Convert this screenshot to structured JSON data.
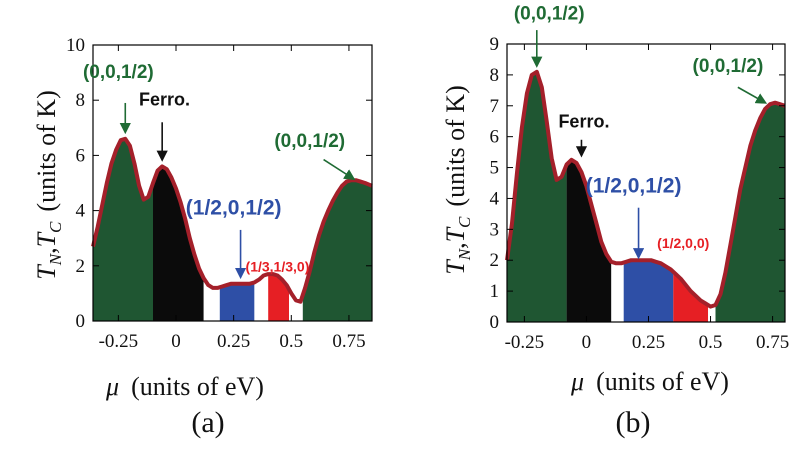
{
  "chart_data": [
    {
      "type": "area",
      "panel_label": "(a)",
      "xlabel_symbol": "μ",
      "xlabel_text": "(units of eV)",
      "ylabel_symbol_main": "T",
      "ylabel_sub1": "N",
      "ylabel_sep": ",",
      "ylabel_sub2": "C",
      "ylabel_text": "(units of K)",
      "xlim": [
        -0.36,
        0.85
      ],
      "ylim": [
        0,
        10
      ],
      "xticks": [
        -0.25,
        0,
        0.25,
        0.5,
        0.75
      ],
      "xtick_labels": [
        "-0.25",
        "0",
        "0.25",
        "0.5",
        "0.75"
      ],
      "yticks": [
        0,
        2,
        4,
        6,
        8,
        10
      ],
      "ytick_labels": [
        "0",
        "2",
        "4",
        "6",
        "8",
        "10"
      ],
      "curve": {
        "x": [
          -0.36,
          -0.34,
          -0.32,
          -0.3,
          -0.28,
          -0.26,
          -0.24,
          -0.22,
          -0.2,
          -0.18,
          -0.16,
          -0.14,
          -0.12,
          -0.1,
          -0.08,
          -0.06,
          -0.04,
          -0.02,
          0.0,
          0.02,
          0.04,
          0.06,
          0.08,
          0.1,
          0.12,
          0.14,
          0.16,
          0.18,
          0.2,
          0.22,
          0.24,
          0.26,
          0.28,
          0.3,
          0.32,
          0.34,
          0.36,
          0.38,
          0.4,
          0.42,
          0.44,
          0.46,
          0.48,
          0.5,
          0.52,
          0.54,
          0.56,
          0.58,
          0.6,
          0.62,
          0.64,
          0.66,
          0.68,
          0.7,
          0.72,
          0.74,
          0.76,
          0.78,
          0.8,
          0.82,
          0.85
        ],
        "y": [
          2.7,
          3.4,
          4.2,
          5.0,
          5.7,
          6.2,
          6.55,
          6.6,
          6.35,
          5.7,
          4.9,
          4.4,
          4.5,
          5.0,
          5.45,
          5.6,
          5.5,
          5.2,
          4.8,
          4.3,
          3.7,
          3.0,
          2.4,
          1.9,
          1.55,
          1.3,
          1.2,
          1.2,
          1.25,
          1.3,
          1.35,
          1.35,
          1.35,
          1.35,
          1.35,
          1.4,
          1.5,
          1.65,
          1.7,
          1.7,
          1.65,
          1.5,
          1.3,
          1.0,
          0.75,
          0.7,
          1.2,
          1.8,
          2.5,
          3.1,
          3.6,
          4.0,
          4.35,
          4.65,
          4.9,
          5.05,
          5.1,
          5.1,
          5.05,
          5.0,
          4.9
        ]
      },
      "regions": [
        {
          "phase": "(0,0,1/2)",
          "x_from": -0.36,
          "x_to": -0.1,
          "color": "#1f5632"
        },
        {
          "phase": "Ferro.",
          "x_from": -0.1,
          "x_to": 0.12,
          "color": "#0b0b0b"
        },
        {
          "phase": "gap",
          "x_from": 0.12,
          "x_to": 0.19,
          "color": "#ffffff"
        },
        {
          "phase": "(1/2,0,1/2)",
          "x_from": 0.19,
          "x_to": 0.34,
          "color": "#2e4fa6"
        },
        {
          "phase": "gap",
          "x_from": 0.34,
          "x_to": 0.4,
          "color": "#ffffff"
        },
        {
          "phase": "(1/3,1/3,0)",
          "x_from": 0.4,
          "x_to": 0.49,
          "color": "#e61f24"
        },
        {
          "phase": "gap",
          "x_from": 0.49,
          "x_to": 0.55,
          "color": "#ffffff"
        },
        {
          "phase": "(0,0,1/2)",
          "x_from": 0.55,
          "x_to": 0.85,
          "color": "#1f5632"
        }
      ],
      "annotations": [
        {
          "text": "(0,0,1/2)",
          "color": "#1f6b34",
          "size": 19,
          "tx": -0.25,
          "ty": 8.8,
          "ax": -0.22,
          "ay": 7.9,
          "hx": -0.22,
          "hy": 6.85
        },
        {
          "text": "Ferro.",
          "color": "#111111",
          "size": 18,
          "tx": -0.05,
          "ty": 7.8,
          "ax": -0.06,
          "ay": 7.2,
          "hx": -0.06,
          "hy": 5.85
        },
        {
          "text": "(1/2,0,1/2)",
          "color": "#2e4fa6",
          "size": 21,
          "tx": 0.25,
          "ty": 3.85,
          "ax": 0.28,
          "ay": 3.3,
          "hx": 0.28,
          "hy": 1.6
        },
        {
          "text": "(1/3,1/3,0)",
          "color": "#e61f24",
          "size": 14,
          "tx": 0.44,
          "ty": 1.8,
          "ax": null,
          "ay": null,
          "hx": null,
          "hy": null
        },
        {
          "text": "(0,0,1/2)",
          "color": "#1f6b34",
          "size": 19,
          "tx": 0.58,
          "ty": 6.3,
          "ax": 0.64,
          "ay": 5.85,
          "hx": 0.77,
          "hy": 5.15
        }
      ]
    },
    {
      "type": "area",
      "panel_label": "(b)",
      "xlabel_symbol": "μ",
      "xlabel_text": "(units of eV)",
      "ylabel_symbol_main": "T",
      "ylabel_sub1": "N",
      "ylabel_sep": ",",
      "ylabel_sub2": "C",
      "ylabel_text": "(units of K)",
      "xlim": [
        -0.32,
        0.8
      ],
      "ylim": [
        0,
        9
      ],
      "xticks": [
        -0.25,
        0,
        0.25,
        0.5,
        0.75
      ],
      "xtick_labels": [
        "-0.25",
        "0",
        "0.25",
        "0.5",
        "0.75"
      ],
      "yticks": [
        0,
        1,
        2,
        3,
        4,
        5,
        6,
        7,
        8,
        9
      ],
      "ytick_labels": [
        "0",
        "1",
        "2",
        "3",
        "4",
        "5",
        "6",
        "7",
        "8",
        "9"
      ],
      "curve": {
        "x": [
          -0.32,
          -0.3,
          -0.28,
          -0.26,
          -0.24,
          -0.22,
          -0.2,
          -0.18,
          -0.16,
          -0.14,
          -0.12,
          -0.1,
          -0.08,
          -0.06,
          -0.04,
          -0.02,
          0.0,
          0.02,
          0.04,
          0.06,
          0.08,
          0.1,
          0.12,
          0.14,
          0.16,
          0.18,
          0.2,
          0.22,
          0.24,
          0.26,
          0.28,
          0.3,
          0.32,
          0.34,
          0.36,
          0.38,
          0.4,
          0.42,
          0.44,
          0.46,
          0.48,
          0.5,
          0.52,
          0.54,
          0.56,
          0.58,
          0.6,
          0.62,
          0.64,
          0.66,
          0.68,
          0.7,
          0.72,
          0.74,
          0.76,
          0.78,
          0.8
        ],
        "y": [
          2.0,
          3.2,
          4.8,
          6.3,
          7.4,
          8.0,
          8.1,
          7.6,
          6.5,
          5.3,
          4.6,
          4.7,
          5.1,
          5.25,
          5.15,
          4.85,
          4.4,
          3.8,
          3.2,
          2.6,
          2.2,
          1.95,
          1.9,
          1.9,
          1.95,
          2.0,
          2.0,
          2.0,
          2.0,
          2.0,
          1.95,
          1.9,
          1.8,
          1.7,
          1.55,
          1.4,
          1.2,
          1.0,
          0.85,
          0.7,
          0.6,
          0.5,
          0.55,
          0.9,
          1.6,
          2.5,
          3.4,
          4.3,
          5.0,
          5.7,
          6.2,
          6.6,
          6.9,
          7.05,
          7.1,
          7.05,
          7.0
        ]
      },
      "regions": [
        {
          "phase": "(0,0,1/2)",
          "x_from": -0.32,
          "x_to": -0.08,
          "color": "#1f5632"
        },
        {
          "phase": "Ferro.",
          "x_from": -0.08,
          "x_to": 0.1,
          "color": "#0b0b0b"
        },
        {
          "phase": "gap",
          "x_from": 0.1,
          "x_to": 0.15,
          "color": "#ffffff"
        },
        {
          "phase": "(1/2,0,1/2)",
          "x_from": 0.15,
          "x_to": 0.35,
          "color": "#2e4fa6"
        },
        {
          "phase": "(1/2,0,0)",
          "x_from": 0.35,
          "x_to": 0.49,
          "color": "#e61f24"
        },
        {
          "phase": "gap",
          "x_from": 0.49,
          "x_to": 0.52,
          "color": "#ffffff"
        },
        {
          "phase": "(0,0,1/2)",
          "x_from": 0.52,
          "x_to": 0.8,
          "color": "#1f5632"
        }
      ],
      "annotations": [
        {
          "text": "(0,0,1/2)",
          "color": "#1f6b34",
          "size": 19,
          "tx": -0.15,
          "ty": 9.8,
          "ax": -0.2,
          "ay": 9.45,
          "hx": -0.2,
          "hy": 8.3
        },
        {
          "text": "Ferro.",
          "color": "#111111",
          "size": 18,
          "tx": -0.01,
          "ty": 6.3,
          "ax": -0.02,
          "ay": 5.9,
          "hx": -0.02,
          "hy": 5.4
        },
        {
          "text": "(1/2,0,1/2)",
          "color": "#2e4fa6",
          "size": 21,
          "tx": 0.19,
          "ty": 4.2,
          "ax": 0.21,
          "ay": 3.7,
          "hx": 0.21,
          "hy": 2.1
        },
        {
          "text": "(1/2,0,0)",
          "color": "#e61f24",
          "size": 14,
          "tx": 0.39,
          "ty": 2.4,
          "ax": null,
          "ay": null,
          "hx": null,
          "hy": null
        },
        {
          "text": "(0,0,1/2)",
          "color": "#1f6b34",
          "size": 19,
          "tx": 0.57,
          "ty": 8.1,
          "ax": 0.61,
          "ay": 7.6,
          "hx": 0.72,
          "hy": 7.1
        }
      ]
    }
  ]
}
